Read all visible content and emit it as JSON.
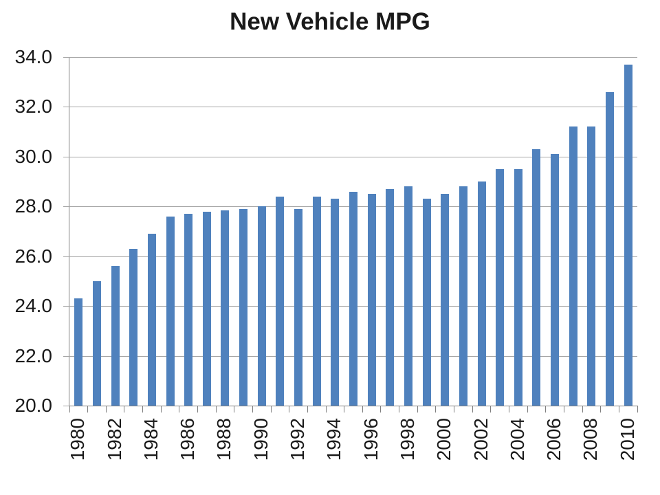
{
  "chart_data": {
    "type": "bar",
    "title": "New Vehicle MPG",
    "categories": [
      1980,
      1981,
      1982,
      1983,
      1984,
      1985,
      1986,
      1987,
      1988,
      1989,
      1990,
      1991,
      1992,
      1993,
      1994,
      1995,
      1996,
      1997,
      1998,
      1999,
      2000,
      2001,
      2002,
      2003,
      2004,
      2005,
      2006,
      2007,
      2008,
      2009,
      2010
    ],
    "values": [
      24.3,
      25.0,
      25.6,
      26.3,
      26.9,
      27.6,
      27.7,
      27.8,
      27.85,
      27.9,
      28.0,
      28.4,
      27.9,
      28.4,
      28.3,
      28.6,
      28.5,
      28.7,
      28.8,
      28.3,
      28.5,
      28.8,
      29.0,
      29.5,
      29.5,
      30.3,
      30.1,
      31.2,
      31.2,
      32.6,
      33.7
    ],
    "xlabel": "",
    "ylabel": "",
    "ylim": [
      20,
      34
    ],
    "y_ticks": [
      34,
      32,
      30,
      28,
      26,
      24,
      22,
      20
    ],
    "y_tick_labels": [
      "34.0",
      "32.0",
      "30.0",
      "28.0",
      "26.0",
      "24.0",
      "22.0",
      "20.0"
    ],
    "x_tick_labels": [
      "1980",
      "1982",
      "1984",
      "1986",
      "1988",
      "1990",
      "1992",
      "1994",
      "1996",
      "1998",
      "2000",
      "2002",
      "2004",
      "2006",
      "2008",
      "2010"
    ],
    "grid": "horizontal-only",
    "legend_position": "none",
    "colors": {
      "bar": "#4F81BD",
      "gridline": "#A6A6A6",
      "axis": "#7F7F7F",
      "text": "#1A1A1A",
      "background": "#FFFFFF"
    }
  }
}
